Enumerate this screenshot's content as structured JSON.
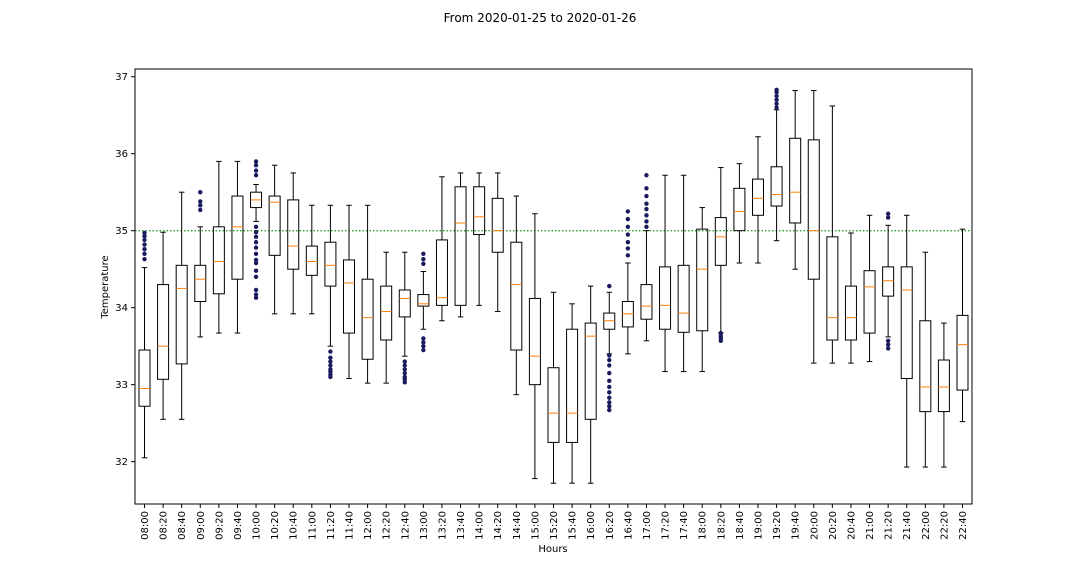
{
  "chart_data": {
    "type": "boxplot",
    "title": "From 2020-01-25 to 2020-01-26",
    "xlabel": "Hours",
    "ylabel": "Temperature",
    "ylim": [
      31.45,
      37.1
    ],
    "yticks": [
      32,
      33,
      34,
      35,
      36,
      37
    ],
    "reference_line": {
      "value": 35,
      "style": "dotted",
      "color": "#2ca02c"
    },
    "colors": {
      "box": "#000000",
      "median": "#ff7f0e",
      "outlier": "#1a1a5e"
    },
    "categories": [
      "08:00",
      "08:20",
      "08:40",
      "09:00",
      "09:20",
      "09:40",
      "10:00",
      "10:20",
      "10:40",
      "11:00",
      "11:20",
      "11:40",
      "12:00",
      "12:20",
      "12:40",
      "13:00",
      "13:20",
      "13:40",
      "14:00",
      "14:20",
      "14:40",
      "15:00",
      "15:20",
      "15:40",
      "16:00",
      "16:20",
      "16:40",
      "17:00",
      "17:20",
      "17:40",
      "18:00",
      "18:20",
      "18:40",
      "19:00",
      "19:20",
      "19:40",
      "20:00",
      "20:20",
      "20:40",
      "21:00",
      "21:20",
      "21:40",
      "22:00",
      "22:20",
      "22:40"
    ],
    "boxes": [
      {
        "whislo": 32.05,
        "q1": 32.72,
        "med": 32.95,
        "q3": 33.45,
        "whishi": 34.52,
        "fliers": [
          34.63,
          34.7,
          34.76,
          34.82,
          34.88,
          34.93,
          34.97
        ]
      },
      {
        "whislo": 32.55,
        "q1": 33.07,
        "med": 33.5,
        "q3": 34.3,
        "whishi": 34.98,
        "fliers": []
      },
      {
        "whislo": 32.55,
        "q1": 33.27,
        "med": 34.25,
        "q3": 34.55,
        "whishi": 35.5,
        "fliers": []
      },
      {
        "whislo": 33.62,
        "q1": 34.08,
        "med": 34.37,
        "q3": 34.55,
        "whishi": 35.05,
        "fliers": [
          35.27,
          35.33,
          35.38,
          35.5
        ]
      },
      {
        "whislo": 33.67,
        "q1": 34.18,
        "med": 34.6,
        "q3": 35.05,
        "whishi": 35.9,
        "fliers": []
      },
      {
        "whislo": 33.67,
        "q1": 34.37,
        "med": 35.05,
        "q3": 35.45,
        "whishi": 35.9,
        "fliers": []
      },
      {
        "whislo": 35.12,
        "q1": 35.3,
        "med": 35.4,
        "q3": 35.5,
        "whishi": 35.6,
        "fliers": [
          34.13,
          34.17,
          34.23,
          34.4,
          34.48,
          34.58,
          34.62,
          34.7,
          34.78,
          34.85,
          34.92,
          34.98,
          35.05,
          35.72,
          35.78,
          35.85,
          35.9
        ]
      },
      {
        "whislo": 33.92,
        "q1": 34.68,
        "med": 35.37,
        "q3": 35.45,
        "whishi": 35.85,
        "fliers": []
      },
      {
        "whislo": 33.92,
        "q1": 34.5,
        "med": 34.8,
        "q3": 35.4,
        "whishi": 35.75,
        "fliers": []
      },
      {
        "whislo": 33.92,
        "q1": 34.42,
        "med": 34.6,
        "q3": 34.8,
        "whishi": 35.33,
        "fliers": []
      },
      {
        "whislo": 33.5,
        "q1": 34.28,
        "med": 34.55,
        "q3": 34.85,
        "whishi": 35.33,
        "fliers": [
          33.1,
          33.13,
          33.17,
          33.2,
          33.25,
          33.3,
          33.35,
          33.43
        ]
      },
      {
        "whislo": 33.08,
        "q1": 33.67,
        "med": 34.32,
        "q3": 34.62,
        "whishi": 35.33,
        "fliers": []
      },
      {
        "whislo": 33.02,
        "q1": 33.33,
        "med": 33.87,
        "q3": 34.37,
        "whishi": 35.33,
        "fliers": []
      },
      {
        "whislo": 33.02,
        "q1": 33.58,
        "med": 33.95,
        "q3": 34.28,
        "whishi": 34.72,
        "fliers": []
      },
      {
        "whislo": 33.37,
        "q1": 33.88,
        "med": 34.12,
        "q3": 34.23,
        "whishi": 34.72,
        "fliers": [
          33.03,
          33.07,
          33.1,
          33.15,
          33.2,
          33.25,
          33.3
        ]
      },
      {
        "whislo": 33.72,
        "q1": 34.02,
        "med": 34.05,
        "q3": 34.17,
        "whishi": 34.47,
        "fliers": [
          33.45,
          33.5,
          33.55,
          33.6,
          34.57,
          34.63,
          34.7
        ]
      },
      {
        "whislo": 33.83,
        "q1": 34.03,
        "med": 34.13,
        "q3": 34.88,
        "whishi": 35.7,
        "fliers": []
      },
      {
        "whislo": 33.88,
        "q1": 34.03,
        "med": 35.1,
        "q3": 35.57,
        "whishi": 35.75,
        "fliers": []
      },
      {
        "whislo": 34.03,
        "q1": 34.95,
        "med": 35.18,
        "q3": 35.57,
        "whishi": 35.75,
        "fliers": []
      },
      {
        "whislo": 33.95,
        "q1": 34.72,
        "med": 35.0,
        "q3": 35.42,
        "whishi": 35.75,
        "fliers": []
      },
      {
        "whislo": 32.87,
        "q1": 33.45,
        "med": 34.3,
        "q3": 34.85,
        "whishi": 35.45,
        "fliers": []
      },
      {
        "whislo": 31.78,
        "q1": 33.0,
        "med": 33.37,
        "q3": 34.12,
        "whishi": 35.22,
        "fliers": []
      },
      {
        "whislo": 31.72,
        "q1": 32.25,
        "med": 32.63,
        "q3": 33.22,
        "whishi": 34.2,
        "fliers": []
      },
      {
        "whislo": 31.72,
        "q1": 32.25,
        "med": 32.63,
        "q3": 33.72,
        "whishi": 34.05,
        "fliers": []
      },
      {
        "whislo": 31.72,
        "q1": 32.55,
        "med": 33.63,
        "q3": 33.8,
        "whishi": 34.28,
        "fliers": []
      },
      {
        "whislo": 33.4,
        "q1": 33.72,
        "med": 33.83,
        "q3": 33.93,
        "whishi": 34.2,
        "fliers": [
          32.67,
          32.72,
          32.77,
          32.83,
          32.9,
          32.97,
          33.05,
          33.15,
          33.25,
          33.32,
          33.38,
          34.28
        ]
      },
      {
        "whislo": 33.4,
        "q1": 33.75,
        "med": 33.92,
        "q3": 34.08,
        "whishi": 34.58,
        "fliers": [
          34.68,
          34.77,
          34.85,
          34.95,
          35.05,
          35.15,
          35.25
        ]
      },
      {
        "whislo": 33.57,
        "q1": 33.85,
        "med": 34.02,
        "q3": 34.3,
        "whishi": 35.0,
        "fliers": [
          35.05,
          35.12,
          35.2,
          35.28,
          35.35,
          35.45,
          35.55,
          35.72
        ]
      },
      {
        "whislo": 33.17,
        "q1": 33.72,
        "med": 34.03,
        "q3": 34.53,
        "whishi": 35.72,
        "fliers": []
      },
      {
        "whislo": 33.17,
        "q1": 33.68,
        "med": 33.93,
        "q3": 34.55,
        "whishi": 35.72,
        "fliers": []
      },
      {
        "whislo": 33.17,
        "q1": 33.7,
        "med": 34.5,
        "q3": 35.02,
        "whishi": 35.3,
        "fliers": []
      },
      {
        "whislo": 33.67,
        "q1": 34.55,
        "med": 34.92,
        "q3": 35.17,
        "whishi": 35.82,
        "fliers": [
          33.57,
          33.6,
          33.63,
          33.67
        ]
      },
      {
        "whislo": 34.58,
        "q1": 35.0,
        "med": 35.25,
        "q3": 35.55,
        "whishi": 35.87,
        "fliers": []
      },
      {
        "whislo": 34.58,
        "q1": 35.2,
        "med": 35.42,
        "q3": 35.67,
        "whishi": 36.22,
        "fliers": []
      },
      {
        "whislo": 34.87,
        "q1": 35.32,
        "med": 35.47,
        "q3": 35.83,
        "whishi": 36.57,
        "fliers": [
          36.6,
          36.65,
          36.7,
          36.75,
          36.8,
          36.83
        ]
      },
      {
        "whislo": 34.5,
        "q1": 35.1,
        "med": 35.5,
        "q3": 36.2,
        "whishi": 36.82,
        "fliers": []
      },
      {
        "whislo": 33.28,
        "q1": 34.37,
        "med": 35.0,
        "q3": 36.18,
        "whishi": 36.82,
        "fliers": []
      },
      {
        "whislo": 33.28,
        "q1": 33.58,
        "med": 33.87,
        "q3": 34.92,
        "whishi": 36.62,
        "fliers": []
      },
      {
        "whislo": 33.28,
        "q1": 33.58,
        "med": 33.87,
        "q3": 34.28,
        "whishi": 34.97,
        "fliers": []
      },
      {
        "whislo": 33.3,
        "q1": 33.67,
        "med": 34.27,
        "q3": 34.48,
        "whishi": 35.2,
        "fliers": []
      },
      {
        "whislo": 33.62,
        "q1": 34.15,
        "med": 34.35,
        "q3": 34.53,
        "whishi": 35.07,
        "fliers": [
          33.47,
          33.52,
          33.57,
          35.17,
          35.22
        ]
      },
      {
        "whislo": 31.93,
        "q1": 33.08,
        "med": 34.23,
        "q3": 34.53,
        "whishi": 35.2,
        "fliers": []
      },
      {
        "whislo": 31.93,
        "q1": 32.65,
        "med": 32.97,
        "q3": 33.83,
        "whishi": 34.72,
        "fliers": []
      },
      {
        "whislo": 31.93,
        "q1": 32.65,
        "med": 32.97,
        "q3": 33.32,
        "whishi": 33.8,
        "fliers": []
      },
      {
        "whislo": 32.52,
        "q1": 32.93,
        "med": 33.52,
        "q3": 33.9,
        "whishi": 35.02,
        "fliers": []
      }
    ]
  }
}
